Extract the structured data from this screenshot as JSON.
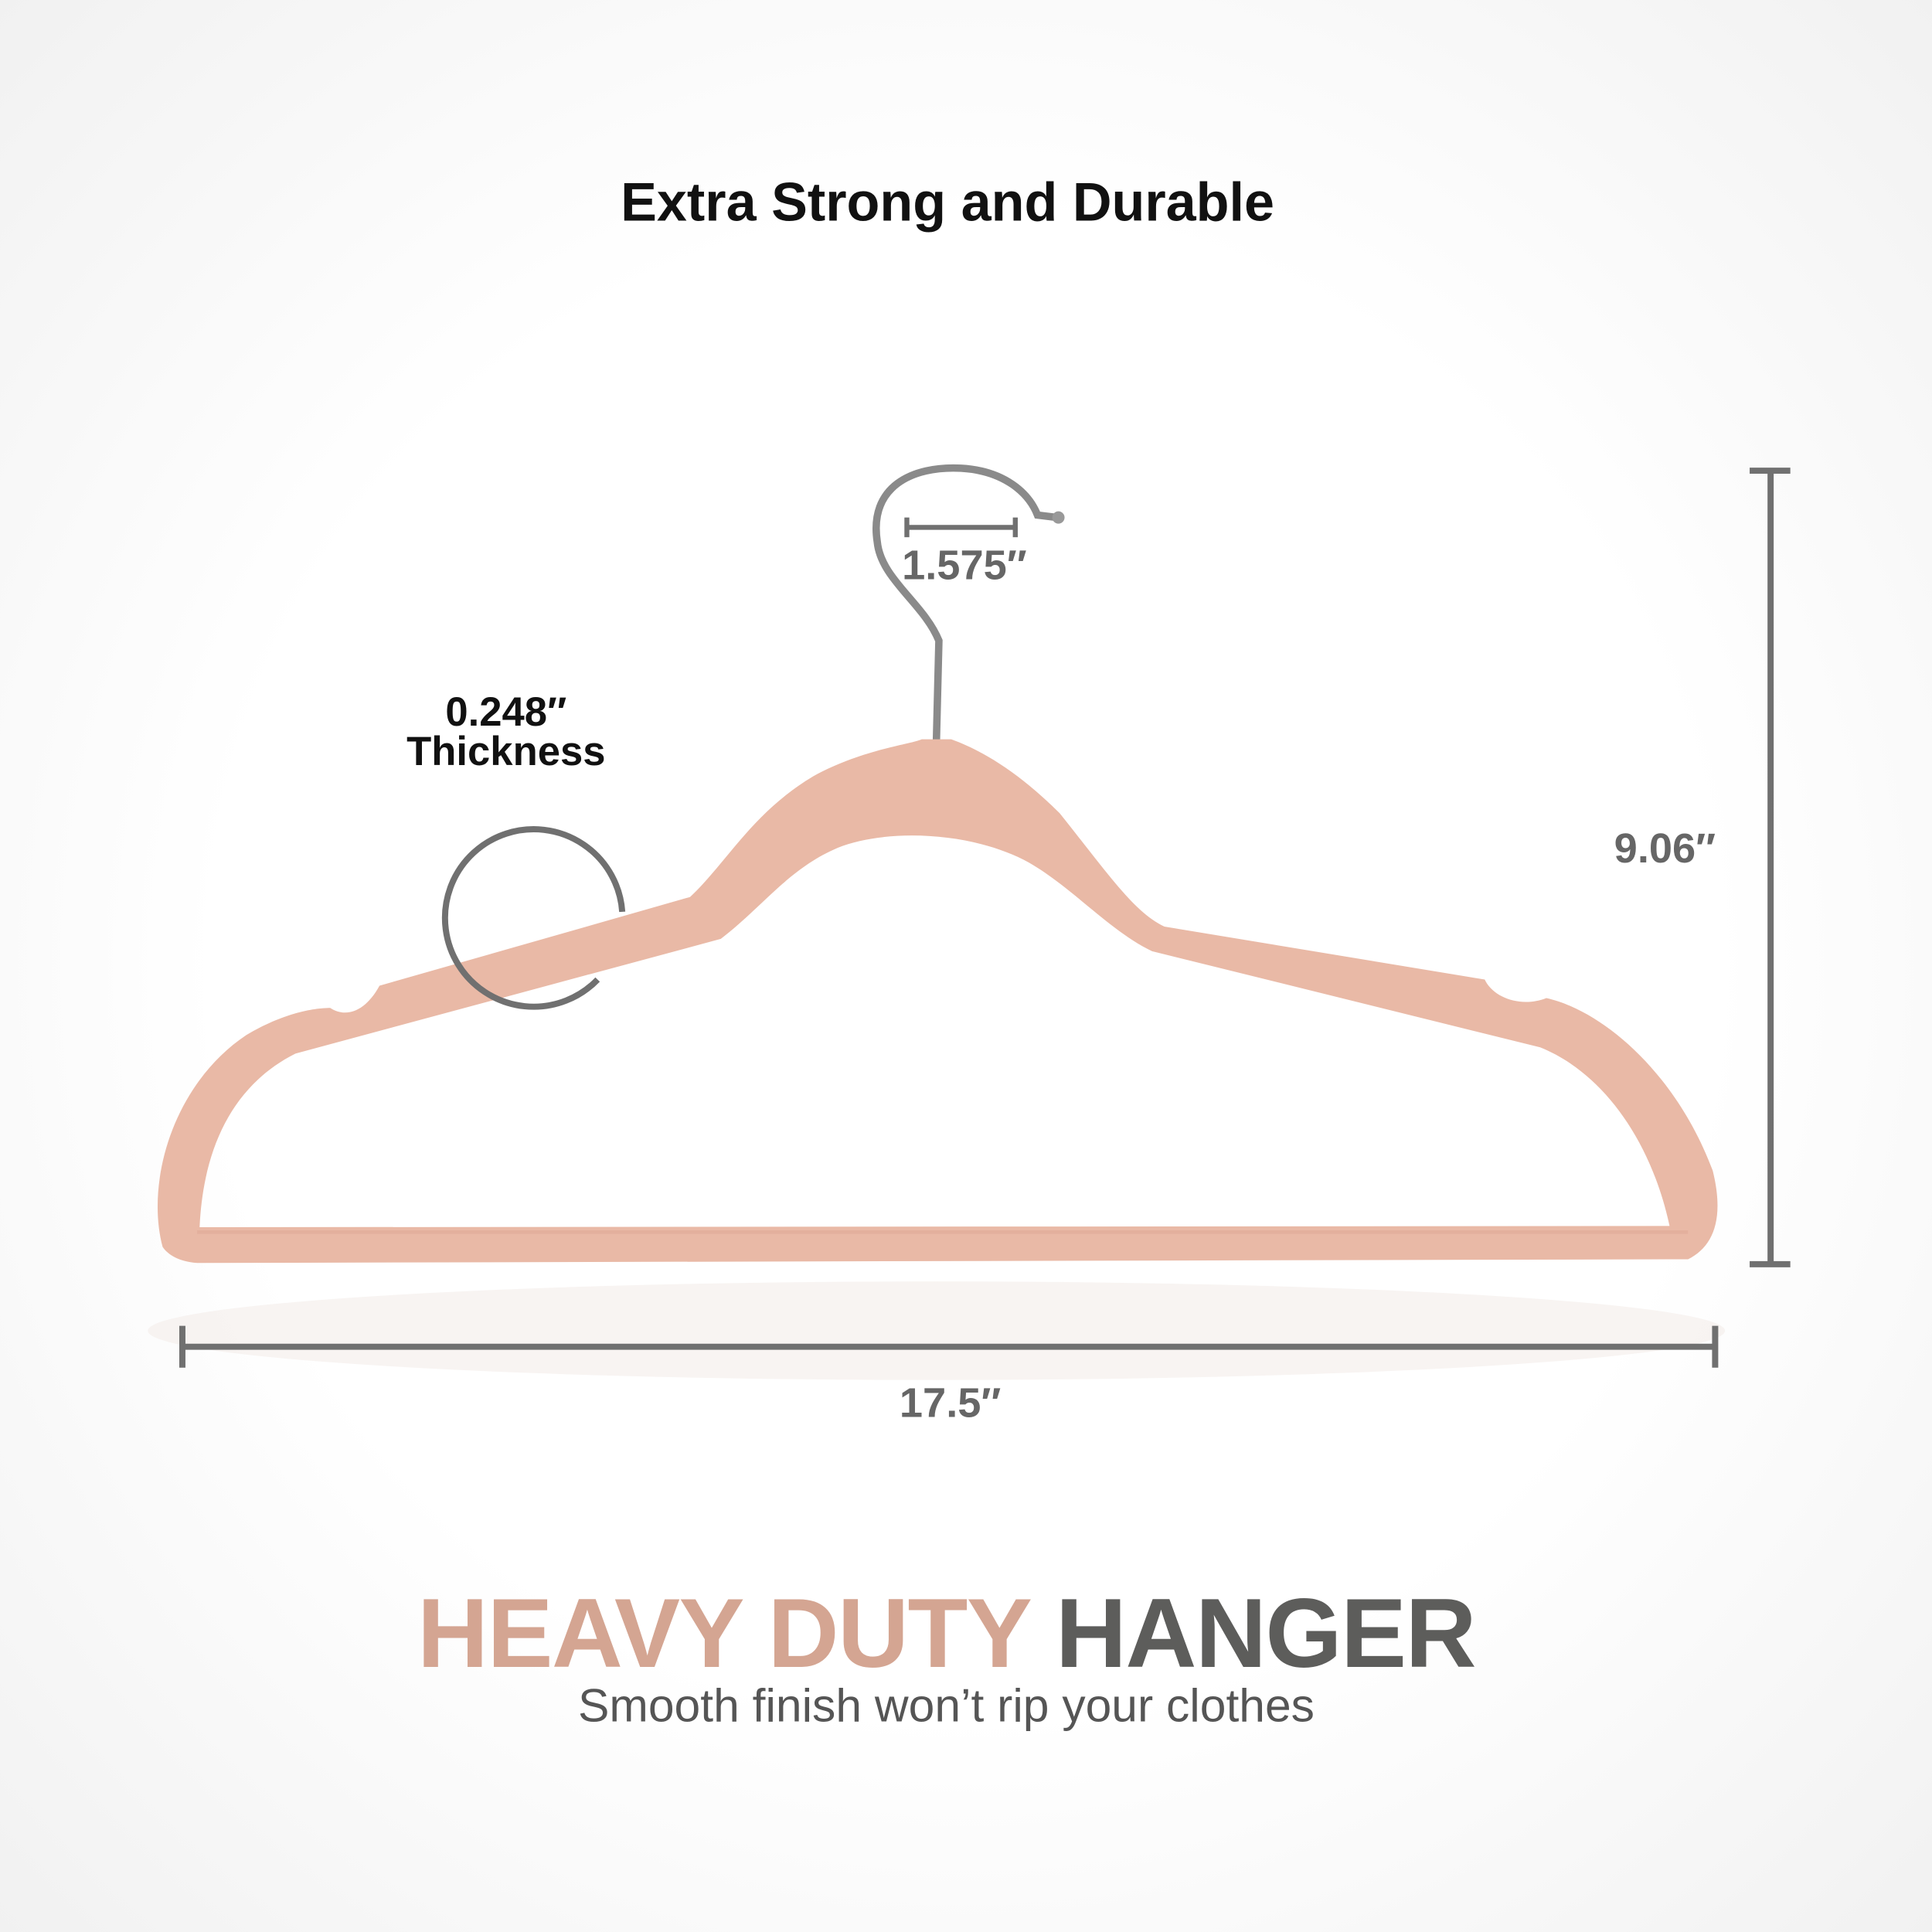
{
  "title": "Extra Strong and Durable",
  "dimensions": {
    "hook_opening": "1.575″",
    "thickness_value": "0.248″",
    "thickness_label": "Thickness",
    "height": "9.06″",
    "width": "17.5″"
  },
  "headline": {
    "part1": "HEAVY DUTY",
    "part2": "HANGER"
  },
  "subtitle": "Smooth finish won’t rip your clothes",
  "colors": {
    "hanger": "#e9b9a6",
    "accent": "#d4a592",
    "dark": "#5d5d5b",
    "dimension_line": "#707070"
  }
}
